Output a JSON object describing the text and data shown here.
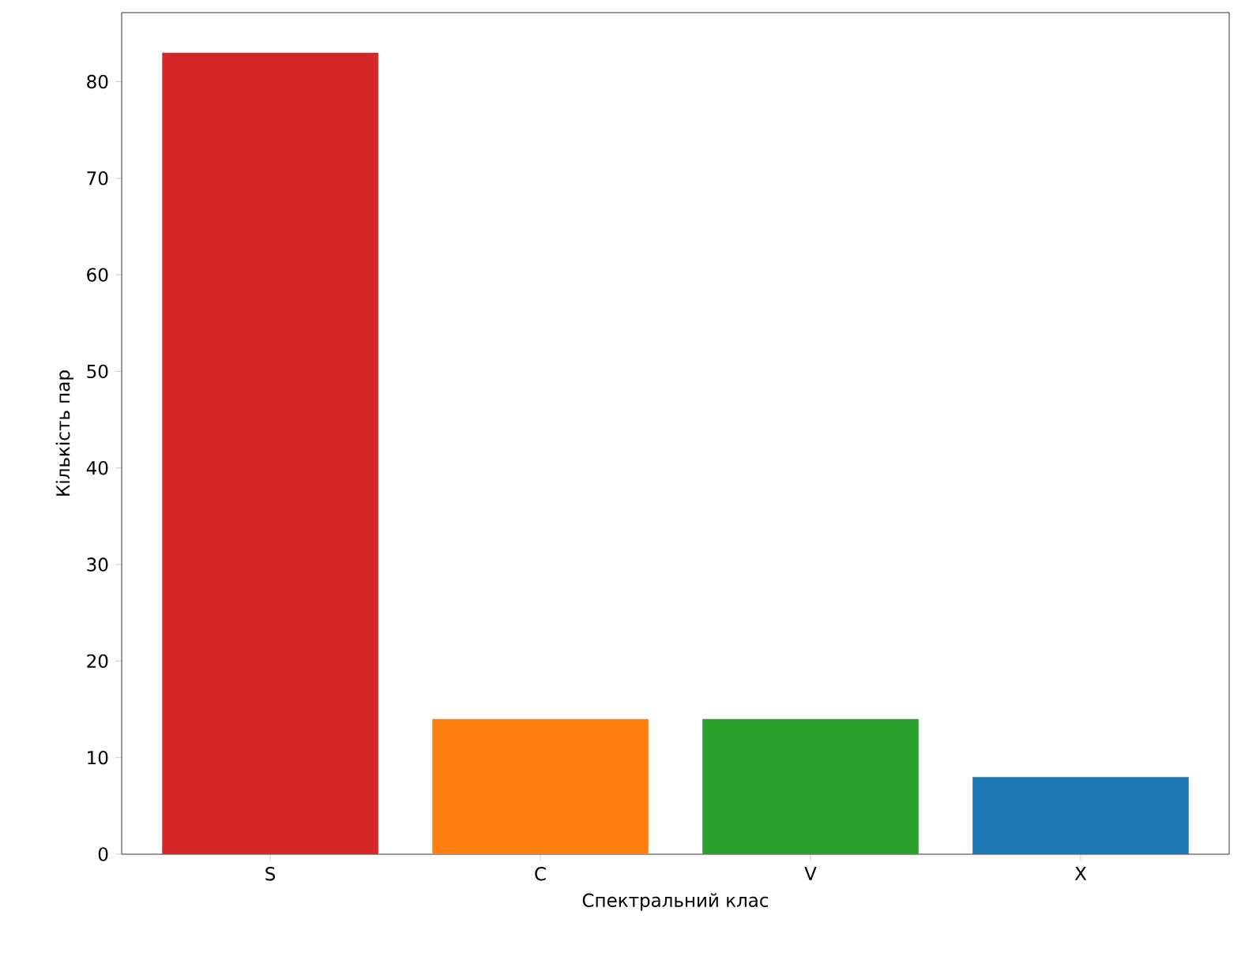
{
  "chart_data": {
    "type": "bar",
    "xlabel": "Спектральний клас",
    "ylabel": "Кількість пар",
    "categories": [
      "S",
      "C",
      "V",
      "X"
    ],
    "values": [
      83,
      14,
      14,
      8
    ],
    "colors": [
      "#d62728",
      "#ff7f0e",
      "#2ca02c",
      "#1f77b4"
    ],
    "ylim": [
      0,
      87.15
    ],
    "yticks": [
      0,
      10,
      20,
      30,
      40,
      50,
      60,
      70,
      80
    ],
    "grid": false
  }
}
